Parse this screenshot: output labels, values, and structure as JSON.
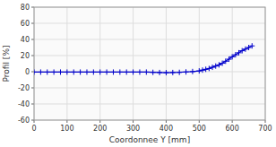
{
  "chart_data": {
    "type": "line",
    "xlabel": "Coordonnee Y [mm]",
    "ylabel": "Profil [%]",
    "x": [
      0,
      20,
      40,
      60,
      80,
      100,
      120,
      140,
      160,
      180,
      200,
      220,
      240,
      260,
      280,
      300,
      320,
      340,
      360,
      380,
      400,
      420,
      440,
      460,
      480,
      500,
      510,
      520,
      530,
      540,
      550,
      560,
      570,
      580,
      590,
      600,
      610,
      620,
      630,
      640,
      650,
      660
    ],
    "values": [
      -0.5,
      -0.5,
      -0.5,
      -0.5,
      -0.5,
      -0.5,
      -0.5,
      -0.5,
      -0.5,
      -0.5,
      -0.5,
      -0.5,
      -0.5,
      -0.5,
      -0.5,
      -0.5,
      -0.5,
      -0.5,
      -0.8,
      -1.0,
      -1.2,
      -1.0,
      -0.8,
      -0.3,
      0.2,
      1.0,
      2.0,
      3.0,
      4.0,
      5.5,
      7.0,
      8.5,
      10.5,
      13.0,
      15.5,
      18.5,
      21.0,
      23.5,
      26.0,
      28.0,
      30.0,
      32.0
    ],
    "xlim": [
      0,
      700
    ],
    "ylim": [
      -60,
      80
    ],
    "xticks": [
      0,
      100,
      200,
      300,
      400,
      500,
      600,
      700
    ],
    "yticks": [
      -60,
      -40,
      -20,
      0,
      20,
      40,
      60,
      80
    ],
    "color": "#0000cc",
    "marker": "plus",
    "grid": true
  }
}
